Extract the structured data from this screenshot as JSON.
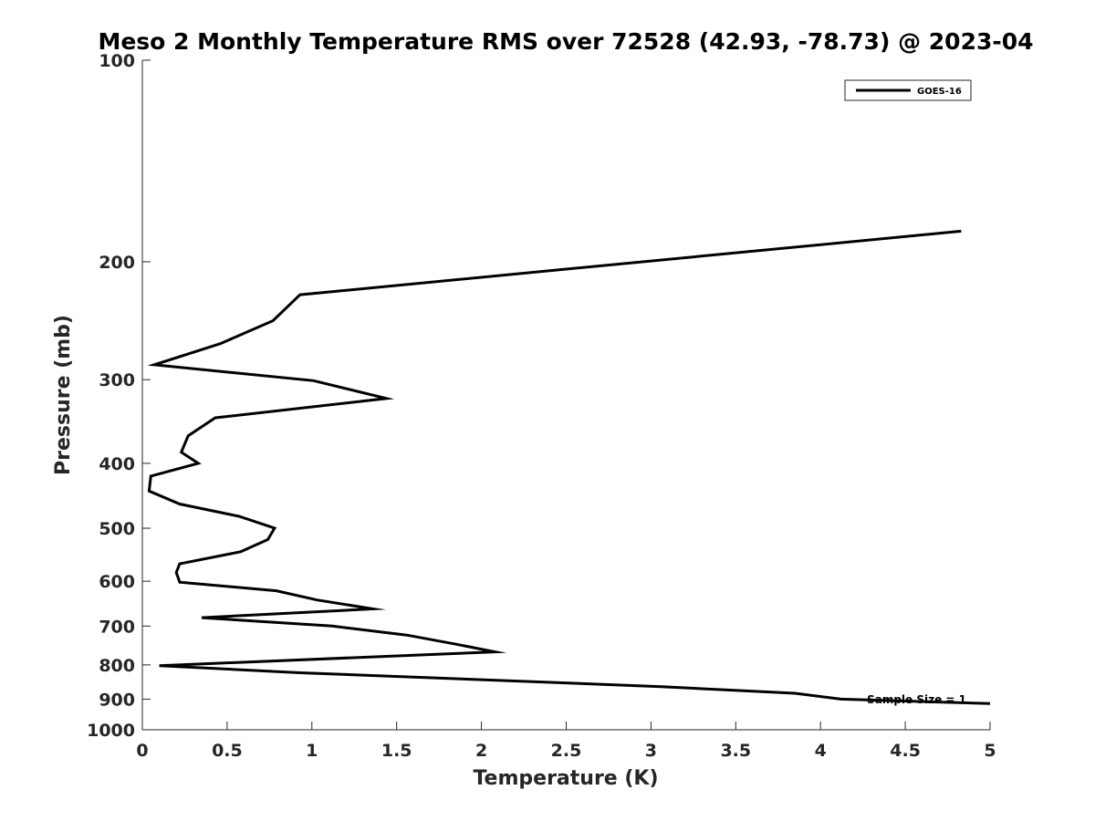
{
  "chart_data": {
    "type": "line",
    "title": "Meso 2 Monthly Temperature RMS over 72528 (42.93, -78.73) @ 2023-04",
    "xlabel": "Temperature (K)",
    "ylabel": "Pressure (mb)",
    "xlim": [
      0,
      5
    ],
    "ylim": [
      1000,
      100
    ],
    "yscale": "log",
    "y_reversed": true,
    "grid": false,
    "legend_position": "top-right",
    "x_ticks": [
      "0",
      "0.5",
      "1",
      "1.5",
      "2",
      "2.5",
      "3",
      "3.5",
      "4",
      "4.5",
      "5"
    ],
    "y_ticks": [
      "100",
      "200",
      "300",
      "400",
      "500",
      "600",
      "700",
      "800",
      "900",
      "1000"
    ],
    "annotation": "Sample Size = 1",
    "series": [
      {
        "name": "GOES-16",
        "color": "#000000",
        "points": [
          {
            "x": 4.83,
            "y": 180
          },
          {
            "x": 0.93,
            "y": 224
          },
          {
            "x": 0.77,
            "y": 245
          },
          {
            "x": 0.46,
            "y": 265
          },
          {
            "x": 0.07,
            "y": 285
          },
          {
            "x": 1.01,
            "y": 301
          },
          {
            "x": 1.44,
            "y": 320
          },
          {
            "x": 0.43,
            "y": 342
          },
          {
            "x": 0.27,
            "y": 364
          },
          {
            "x": 0.23,
            "y": 385
          },
          {
            "x": 0.33,
            "y": 400
          },
          {
            "x": 0.05,
            "y": 418
          },
          {
            "x": 0.04,
            "y": 440
          },
          {
            "x": 0.22,
            "y": 460
          },
          {
            "x": 0.57,
            "y": 480
          },
          {
            "x": 0.78,
            "y": 500
          },
          {
            "x": 0.74,
            "y": 520
          },
          {
            "x": 0.58,
            "y": 542
          },
          {
            "x": 0.22,
            "y": 565
          },
          {
            "x": 0.2,
            "y": 582
          },
          {
            "x": 0.22,
            "y": 602
          },
          {
            "x": 0.79,
            "y": 620
          },
          {
            "x": 1.03,
            "y": 640
          },
          {
            "x": 1.36,
            "y": 660
          },
          {
            "x": 0.35,
            "y": 680
          },
          {
            "x": 1.12,
            "y": 700
          },
          {
            "x": 1.56,
            "y": 722
          },
          {
            "x": 1.85,
            "y": 745
          },
          {
            "x": 2.08,
            "y": 765
          },
          {
            "x": 0.1,
            "y": 802
          },
          {
            "x": 0.93,
            "y": 822
          },
          {
            "x": 3.06,
            "y": 862
          },
          {
            "x": 3.85,
            "y": 882
          },
          {
            "x": 4.12,
            "y": 900
          },
          {
            "x": 5.0,
            "y": 914
          }
        ]
      }
    ]
  }
}
